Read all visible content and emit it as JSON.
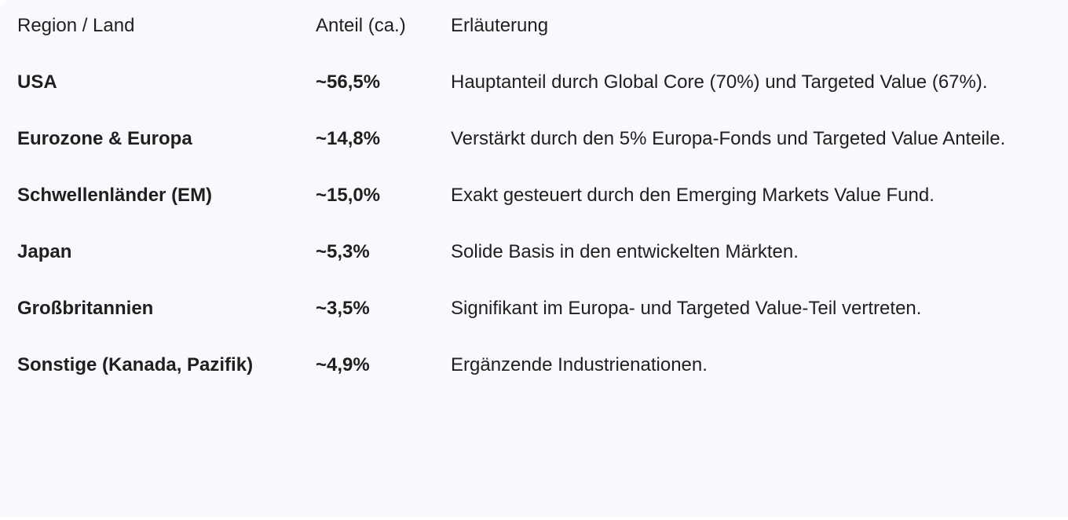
{
  "table": {
    "headers": [
      "Region / Land",
      "Anteil (ca.)",
      "Erläuterung"
    ],
    "rows": [
      {
        "region": "USA",
        "share": "~56,5%",
        "note": "Hauptanteil durch Global Core (70%) und Targeted Value (67%)."
      },
      {
        "region": "Eurozone & Europa",
        "share": "~14,8%",
        "note": "Verstärkt durch den 5% Europa-Fonds und Targeted Value Anteile."
      },
      {
        "region": "Schwellenländer (EM)",
        "share": "~15,0%",
        "note": "Exakt gesteuert durch den Emerging Markets Value Fund."
      },
      {
        "region": "Japan",
        "share": "~5,3%",
        "note": "Solide Basis in den entwickelten Märkten."
      },
      {
        "region": "Großbritannien",
        "share": "~3,5%",
        "note": "Signifikant im Europa- und Targeted Value-Teil vertreten."
      },
      {
        "region": "Sonstige (Kanada, Pazifik)",
        "share": "~4,9%",
        "note": "Ergänzende Industrienationen."
      }
    ]
  }
}
